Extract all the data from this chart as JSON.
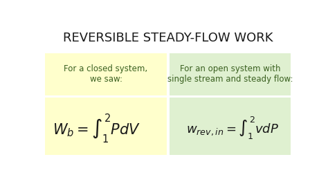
{
  "title": "REVERSIBLE STEADY-FLOW WORK",
  "title_fontsize": 13,
  "title_color": "#1a1a1a",
  "background_color": "#ffffff",
  "box1_color": "#ffffcc",
  "box2_color": "#dff0d0",
  "box1_text": "For a closed system,\nwe saw:",
  "box2_text": "For an open system with\nsingle stream and steady flow:",
  "text_color": "#3a6020",
  "formula_color": "#1a1a1a",
  "formula1_fontsize": 15,
  "formula2_fontsize": 13,
  "text_fontsize": 8.5
}
